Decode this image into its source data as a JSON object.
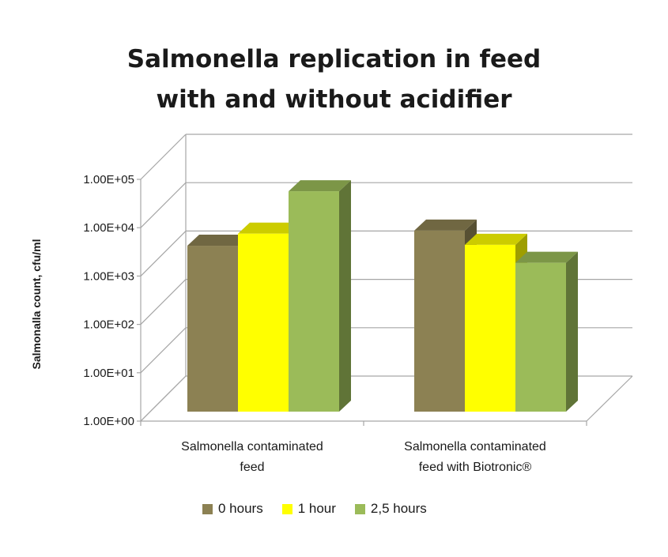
{
  "chart_data": {
    "type": "bar",
    "title_lines": [
      "Salmonella replication in feed",
      "with and without acidifier"
    ],
    "ylabel": "Salmonalla count, cfu/ml",
    "xlabel": "",
    "yscale": "log",
    "ylim": [
      1,
      100000
    ],
    "yticks": [
      "1.00E+00",
      "1.00E+01",
      "1.00E+02",
      "1.00E+03",
      "1.00E+04",
      "1.00E+05"
    ],
    "categories": [
      [
        "Salmonella contaminated",
        "feed"
      ],
      [
        "Salmonella contaminated",
        "feed with Biotronic®"
      ]
    ],
    "series": [
      {
        "name": "0 hours",
        "color": "#8C8153",
        "values": [
          1250,
          2400
        ]
      },
      {
        "name": "1 hour",
        "color": "#FFFF00",
        "values": [
          2100,
          1300
        ]
      },
      {
        "name": "2,5 hours",
        "color": "#9BBB59",
        "values": [
          13000,
          600
        ]
      }
    ],
    "grid": true,
    "legend_position": "bottom",
    "style": "3d-bar"
  }
}
